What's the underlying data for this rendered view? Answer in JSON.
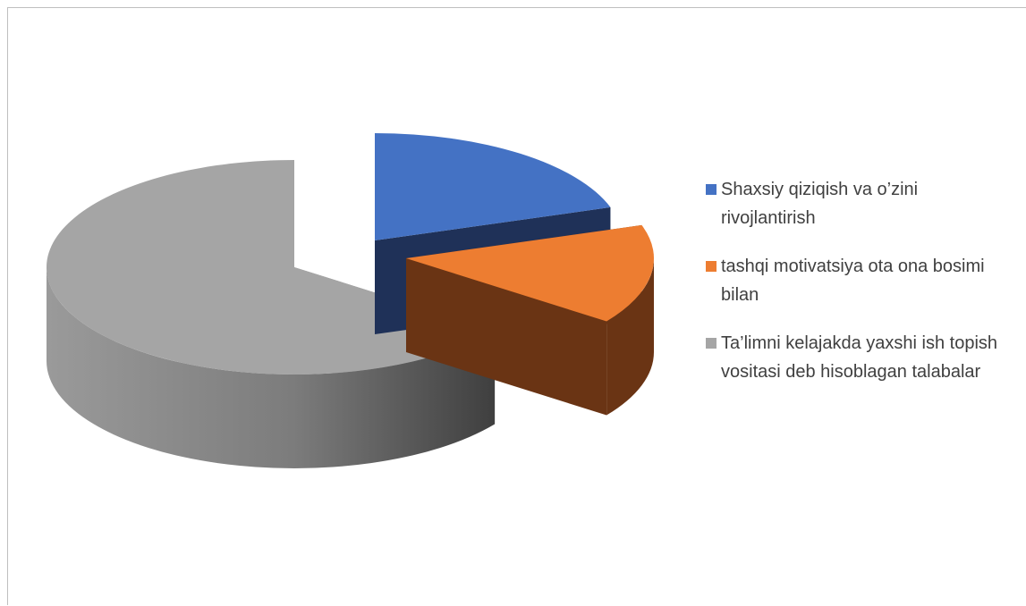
{
  "chart_data": {
    "type": "pie",
    "title": "",
    "slices": [
      {
        "label": "Shaxsiy qiziqish va o’zini rivojlantirish",
        "value": 20,
        "color": "#4472C4",
        "side_color": "#1F3158"
      },
      {
        "label": "tashqi motivatsiya ota ona bosimi bilan",
        "value": 15,
        "color": "#ED7D31",
        "side_color": "#6A3414"
      },
      {
        "label": "Ta’limni kelajakda yaxshi ish topish  vositasi deb hisoblagan talabalar",
        "value": 65,
        "color": "#A5A5A5",
        "side_color": "#7A7A7A"
      }
    ],
    "exploded": [
      true,
      true,
      false
    ],
    "legend": "right"
  }
}
